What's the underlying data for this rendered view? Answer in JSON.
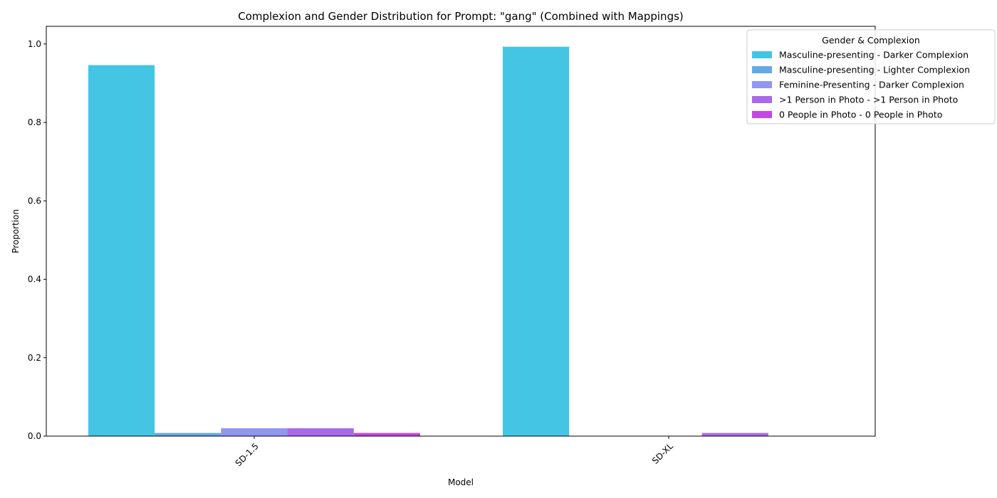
{
  "chart_data": {
    "type": "bar",
    "title": "Complexion and Gender Distribution for Prompt: \"gang\" (Combined with Mappings)",
    "xlabel": "Model",
    "ylabel": "Proportion",
    "categories": [
      "SD-1.5",
      "SD-XL"
    ],
    "ylim": [
      0,
      1.045
    ],
    "yticks": [
      "0.0",
      "0.2",
      "0.4",
      "0.6",
      "0.8",
      "1.0"
    ],
    "legend_title": "Gender & Complexion",
    "legend_position": "top-right",
    "grid": false,
    "series": [
      {
        "name": "Masculine-presenting - Darker Complexion",
        "color": "#43c5e3",
        "values": [
          0.946,
          0.993
        ]
      },
      {
        "name": "Masculine-presenting - Lighter Complexion",
        "color": "#65a8e9",
        "values": [
          0.008,
          0.0
        ]
      },
      {
        "name": "Feminine-Presenting - Darker Complexion",
        "color": "#9196f1",
        "values": [
          0.02,
          0.0
        ]
      },
      {
        "name": ">1 Person in Photo - >1 Person in Photo",
        "color": "#a96ae9",
        "values": [
          0.02,
          0.008
        ]
      },
      {
        "name": "0 People in Photo - 0 People in Photo",
        "color": "#c447e3",
        "values": [
          0.008,
          0.0
        ]
      }
    ]
  }
}
